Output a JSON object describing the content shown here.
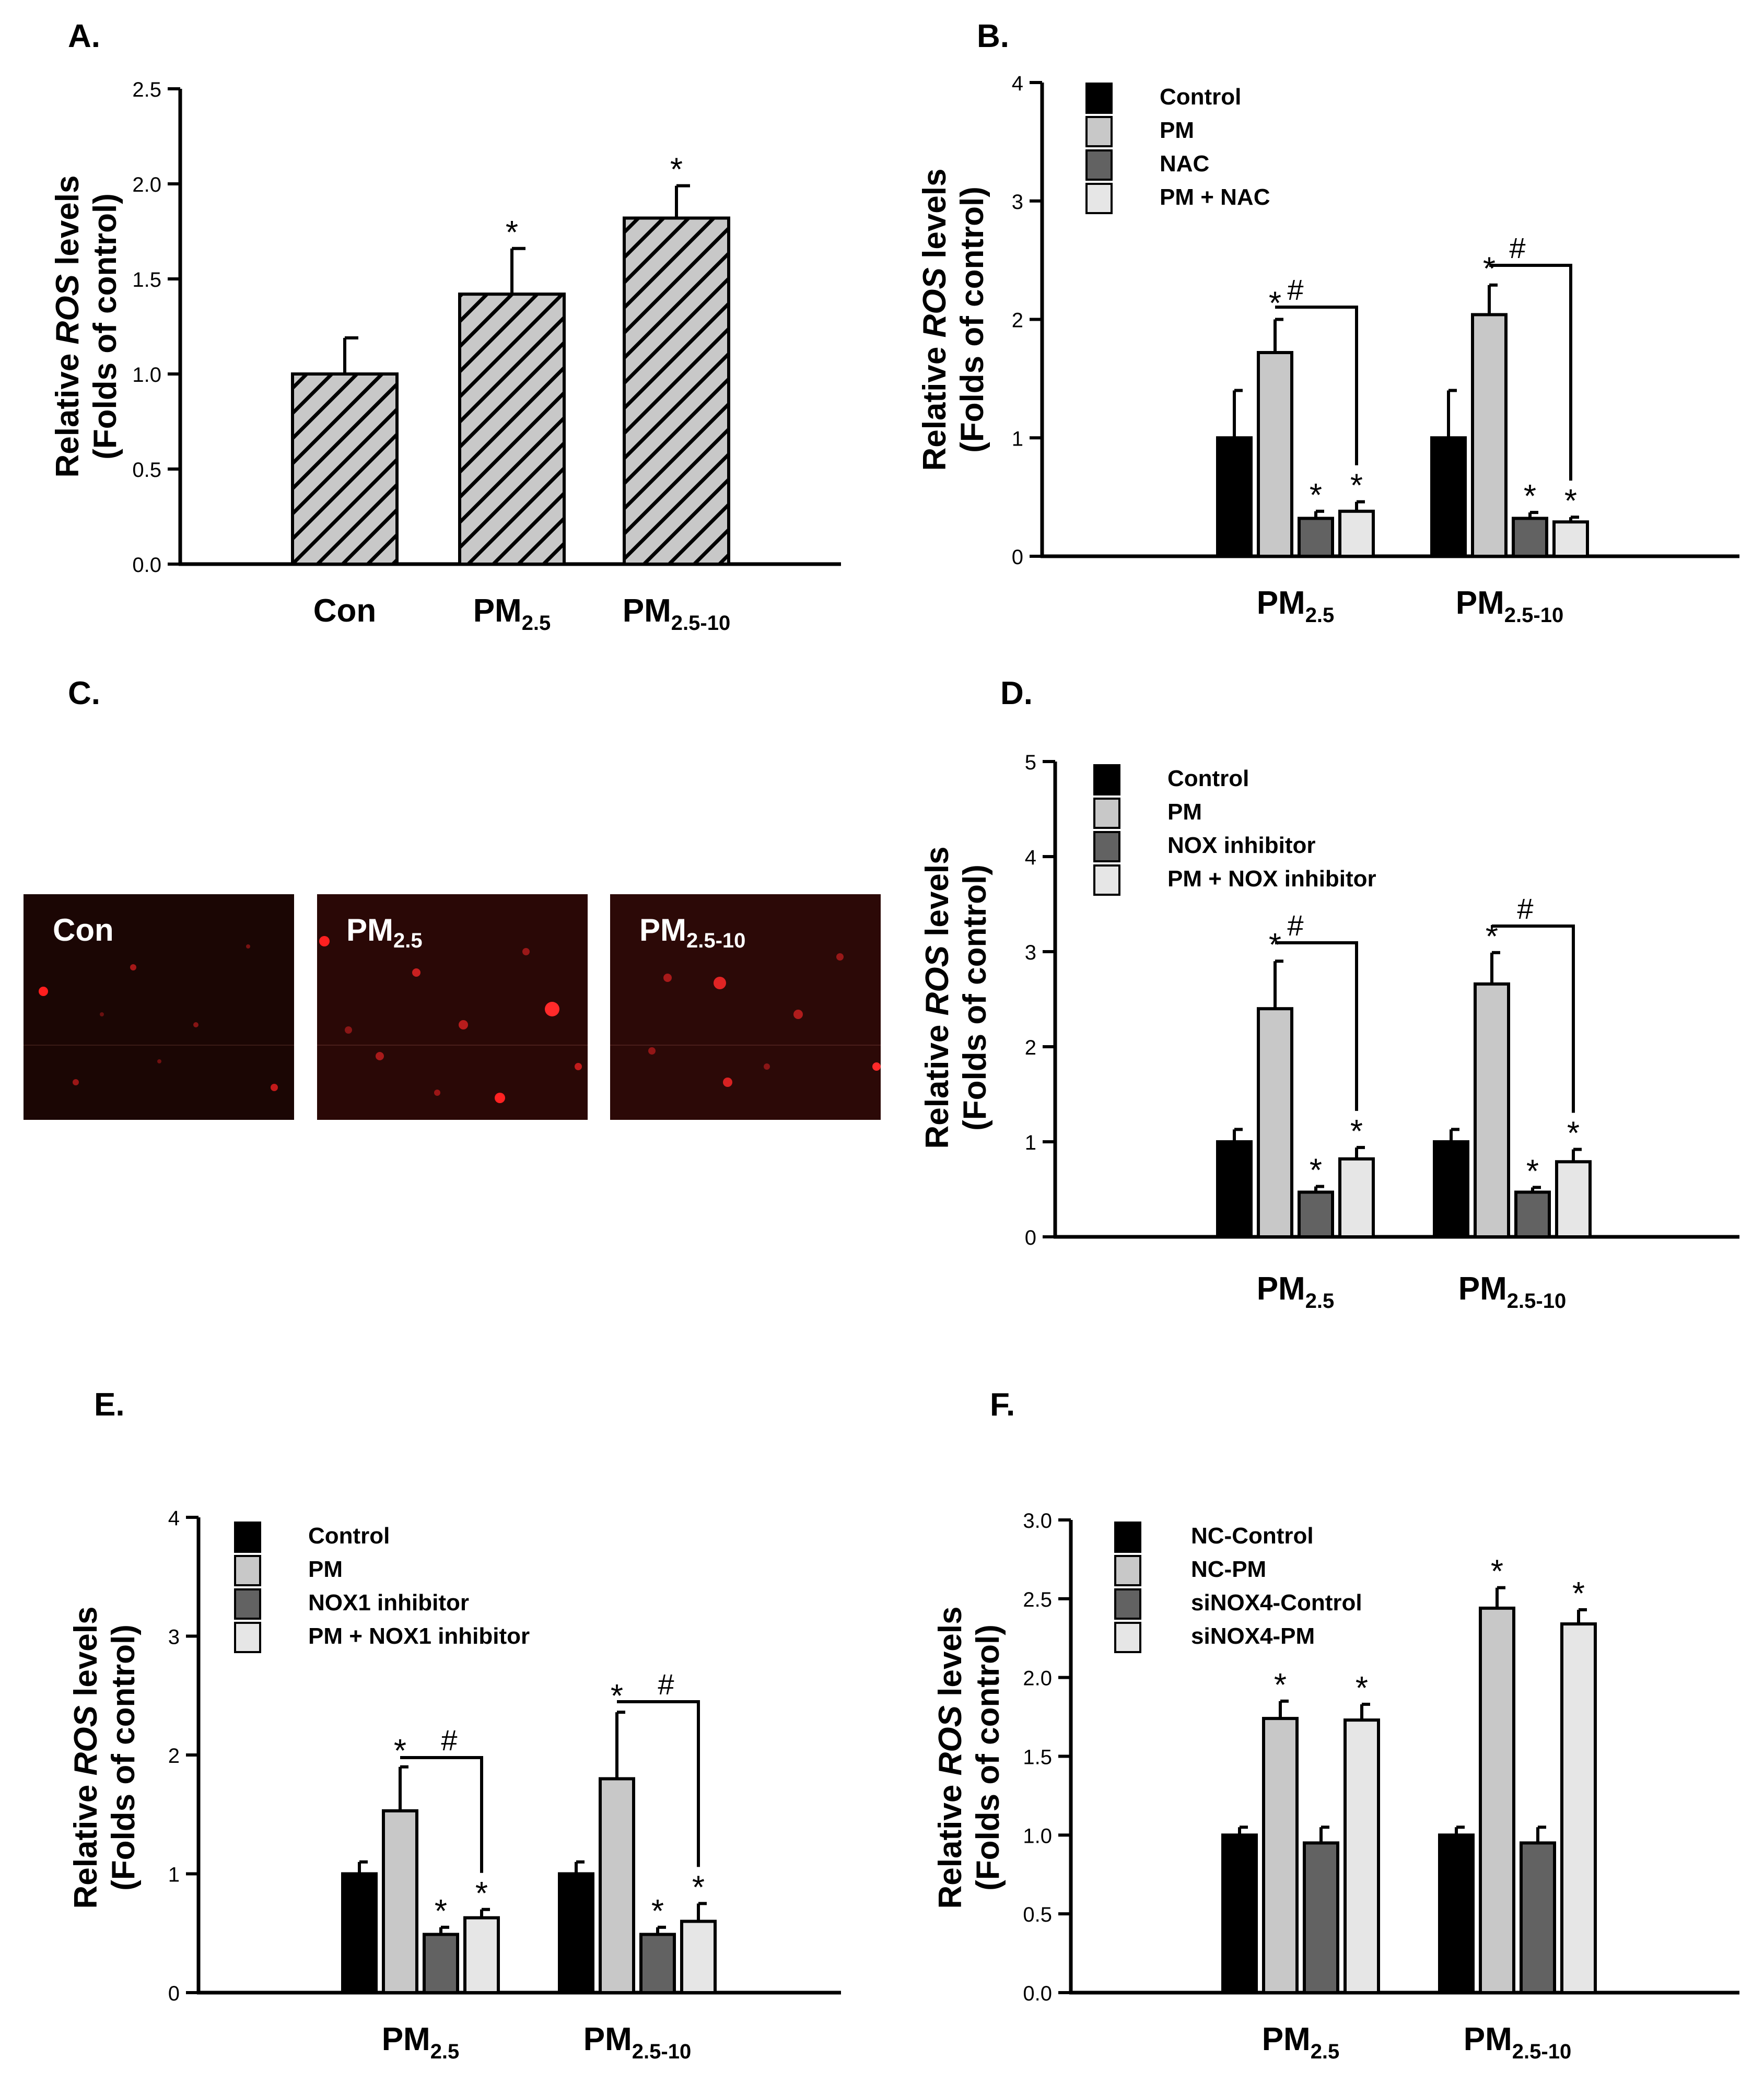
{
  "chart_data": [
    {
      "panel": "A.",
      "type": "bar",
      "ylabel_pre": "Relative ",
      "ylabel_ital": "ROS",
      "ylabel_post": " levels",
      "ylabel2": "(Folds of control)",
      "ylim": [
        0,
        2.5
      ],
      "yticks": [
        "0.0",
        "0.5",
        "1.0",
        "1.5",
        "2.0",
        "2.5"
      ],
      "categories": [
        {
          "main": "Con",
          "sub": ""
        },
        {
          "main": "PM",
          "sub": "2.5"
        },
        {
          "main": "PM",
          "sub": "2.5-10"
        }
      ],
      "series": [
        {
          "name": "",
          "color": "#c8c8c8",
          "hatched": true,
          "values": [
            1.0,
            1.42,
            1.82
          ],
          "errors": [
            0.19,
            0.24,
            0.17
          ],
          "marks": [
            "",
            "*",
            "*"
          ]
        }
      ]
    },
    {
      "panel": "B.",
      "type": "bar",
      "ylabel_pre": "Relative ",
      "ylabel_ital": "ROS",
      "ylabel_post": " levels",
      "ylabel2": "(Folds of control)",
      "ylim": [
        0,
        4
      ],
      "yticks": [
        "0",
        "1",
        "2",
        "3",
        "4"
      ],
      "categories": [
        {
          "main": "PM",
          "sub": "2.5"
        },
        {
          "main": "PM",
          "sub": "2.5-10"
        }
      ],
      "series": [
        {
          "name": "Control",
          "color": "#000000",
          "values": [
            1.0,
            1.0
          ],
          "errors": [
            0.4,
            0.4
          ],
          "marks": [
            "",
            ""
          ]
        },
        {
          "name": "PM",
          "color": "#c8c8c8",
          "values": [
            1.72,
            2.04
          ],
          "errors": [
            0.28,
            0.25
          ],
          "marks": [
            "*",
            "*"
          ]
        },
        {
          "name": "NAC",
          "color": "#626262",
          "values": [
            0.32,
            0.32
          ],
          "errors": [
            0.06,
            0.05
          ],
          "marks": [
            "*",
            "*"
          ]
        },
        {
          "name": "PM + NAC",
          "color": "#e6e6e6",
          "values": [
            0.38,
            0.29
          ],
          "errors": [
            0.08,
            0.04
          ],
          "marks": [
            "*",
            "*"
          ]
        }
      ],
      "brackets": [
        "#",
        "#"
      ]
    },
    {
      "panel": "D.",
      "type": "bar",
      "ylabel_pre": "Relative ",
      "ylabel_ital": "ROS",
      "ylabel_post": " levels",
      "ylabel2": "(Folds of control)",
      "ylim": [
        0,
        5
      ],
      "yticks": [
        "0",
        "1",
        "2",
        "3",
        "4",
        "5"
      ],
      "categories": [
        {
          "main": "PM",
          "sub": "2.5"
        },
        {
          "main": "PM",
          "sub": "2.5-10"
        }
      ],
      "series": [
        {
          "name": "Control",
          "color": "#000000",
          "values": [
            1.0,
            1.0
          ],
          "errors": [
            0.13,
            0.13
          ],
          "marks": [
            "",
            ""
          ]
        },
        {
          "name": "PM",
          "color": "#c8c8c8",
          "values": [
            2.4,
            2.66
          ],
          "errors": [
            0.5,
            0.33
          ],
          "marks": [
            "*",
            "*"
          ]
        },
        {
          "name": "NOX inhibitor",
          "color": "#626262",
          "values": [
            0.47,
            0.47
          ],
          "errors": [
            0.06,
            0.05
          ],
          "marks": [
            "*",
            "*"
          ]
        },
        {
          "name": "PM + NOX inhibitor",
          "color": "#e6e6e6",
          "values": [
            0.82,
            0.79
          ],
          "errors": [
            0.12,
            0.13
          ],
          "marks": [
            "*",
            "*"
          ]
        }
      ],
      "brackets": [
        "#",
        "#"
      ]
    },
    {
      "panel": "E.",
      "type": "bar",
      "ylabel_pre": "Relative ",
      "ylabel_ital": "ROS",
      "ylabel_post": " levels",
      "ylabel2": "(Folds of control)",
      "ylim": [
        0,
        4
      ],
      "yticks": [
        "0",
        "1",
        "2",
        "3",
        "4"
      ],
      "categories": [
        {
          "main": "PM",
          "sub": "2.5"
        },
        {
          "main": "PM",
          "sub": "2.5-10"
        }
      ],
      "series": [
        {
          "name": "Control",
          "color": "#000000",
          "values": [
            1.0,
            1.0
          ],
          "errors": [
            0.1,
            0.1
          ],
          "marks": [
            "",
            ""
          ]
        },
        {
          "name": "PM",
          "color": "#c8c8c8",
          "values": [
            1.53,
            1.8
          ],
          "errors": [
            0.37,
            0.56
          ],
          "marks": [
            "*",
            "*"
          ]
        },
        {
          "name": "NOX1 inhibitor",
          "color": "#626262",
          "values": [
            0.49,
            0.49
          ],
          "errors": [
            0.06,
            0.06
          ],
          "marks": [
            "*",
            "*"
          ]
        },
        {
          "name": "PM + NOX1 inhibitor",
          "color": "#e6e6e6",
          "values": [
            0.63,
            0.6
          ],
          "errors": [
            0.07,
            0.15
          ],
          "marks": [
            "*",
            "*"
          ]
        }
      ],
      "brackets": [
        "#",
        "#"
      ]
    },
    {
      "panel": "F.",
      "type": "bar",
      "ylabel_pre": "Relative ",
      "ylabel_ital": "ROS",
      "ylabel_post": " levels",
      "ylabel2": "(Folds of control)",
      "ylim": [
        0,
        3.0
      ],
      "yticks": [
        "0.0",
        "0.5",
        "1.0",
        "1.5",
        "2.0",
        "2.5",
        "3.0"
      ],
      "categories": [
        {
          "main": "PM",
          "sub": "2.5"
        },
        {
          "main": "PM",
          "sub": "2.5-10"
        }
      ],
      "series": [
        {
          "name": "NC-Control",
          "color": "#000000",
          "values": [
            1.0,
            1.0
          ],
          "errors": [
            0.05,
            0.05
          ],
          "marks": [
            "",
            ""
          ]
        },
        {
          "name": "NC-PM",
          "color": "#c8c8c8",
          "values": [
            1.74,
            2.44
          ],
          "errors": [
            0.11,
            0.13
          ],
          "marks": [
            "*",
            "*"
          ]
        },
        {
          "name": "siNOX4-Control",
          "color": "#626262",
          "values": [
            0.95,
            0.95
          ],
          "errors": [
            0.1,
            0.1
          ],
          "marks": [
            "",
            ""
          ]
        },
        {
          "name": "siNOX4-PM",
          "color": "#e6e6e6",
          "values": [
            1.73,
            2.34
          ],
          "errors": [
            0.1,
            0.09
          ],
          "marks": [
            "*",
            "*"
          ]
        }
      ]
    }
  ],
  "panel_c": {
    "label": "C.",
    "images": [
      {
        "main": "Con",
        "sub": ""
      },
      {
        "main": "PM",
        "sub": "2.5"
      },
      {
        "main": "PM",
        "sub": "2.5-10"
      }
    ]
  }
}
